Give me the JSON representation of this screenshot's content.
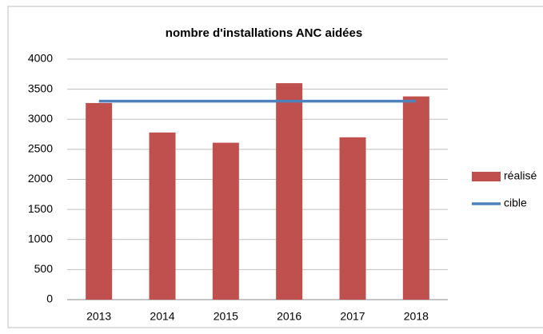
{
  "chart_data": {
    "type": "bar",
    "title": "nombre d'installations ANC aidées",
    "categories": [
      "2013",
      "2014",
      "2015",
      "2016",
      "2017",
      "2018"
    ],
    "series": [
      {
        "name": "réalisé",
        "type": "bar",
        "color": "#c0504d",
        "values": [
          3270,
          2780,
          2610,
          3600,
          2700,
          3380
        ]
      },
      {
        "name": "cible",
        "type": "line",
        "color": "#4f81bd",
        "values": [
          3300,
          3300,
          3300,
          3300,
          3300,
          3300
        ]
      }
    ],
    "ylim": [
      0,
      4000
    ],
    "yticks": [
      0,
      500,
      1000,
      1500,
      2000,
      2500,
      3000,
      3500,
      4000
    ],
    "grid": true,
    "legend": "right"
  }
}
